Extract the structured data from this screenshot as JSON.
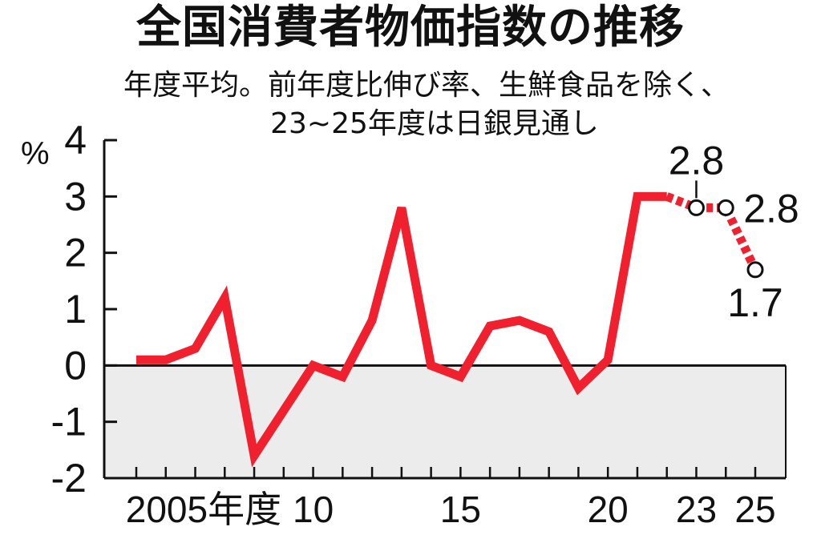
{
  "chart_data": {
    "type": "line",
    "title": "全国消費者物価指数の推移",
    "subtitle_line1": "年度平均。前年度比伸び率、生鮮食品を除く、",
    "subtitle_line2": "23~25年度は日銀見通し",
    "unit": "%",
    "ylim": [
      -2,
      4
    ],
    "y_ticks": [
      "4",
      "3",
      "2",
      "1",
      "0",
      "-1",
      "-2"
    ],
    "x_tick_labels": [
      {
        "x": 2005,
        "label": "2005年度"
      },
      {
        "x": 2010,
        "label": "10"
      },
      {
        "x": 2015,
        "label": "15"
      },
      {
        "x": 2020,
        "label": "20"
      },
      {
        "x": 2023,
        "label": "23"
      },
      {
        "x": 2025,
        "label": "25"
      }
    ],
    "shaded_region": "negative",
    "series": [
      {
        "style": "solid",
        "color": "#f0202e",
        "x": [
          2004,
          2005,
          2006,
          2007,
          2008,
          2009,
          2010,
          2011,
          2012,
          2013,
          2014,
          2015,
          2016,
          2017,
          2018,
          2019,
          2020,
          2021,
          2022
        ],
        "y": [
          0.1,
          0.1,
          0.3,
          1.2,
          -1.6,
          -0.8,
          0.0,
          -0.2,
          0.8,
          2.8,
          0.0,
          -0.2,
          0.7,
          0.8,
          0.6,
          -0.4,
          0.1,
          3.0,
          3.0
        ]
      },
      {
        "style": "dotted",
        "color": "#f0202e",
        "x": [
          2022,
          2023,
          2024,
          2025
        ],
        "y": [
          3.0,
          2.8,
          2.8,
          1.7
        ]
      }
    ],
    "annotations": [
      {
        "x": 2023,
        "y": 2.8,
        "label": "2.8"
      },
      {
        "x": 2024,
        "y": 2.8,
        "label": "2.8"
      },
      {
        "x": 2025,
        "y": 1.7,
        "label": "1.7"
      }
    ]
  }
}
